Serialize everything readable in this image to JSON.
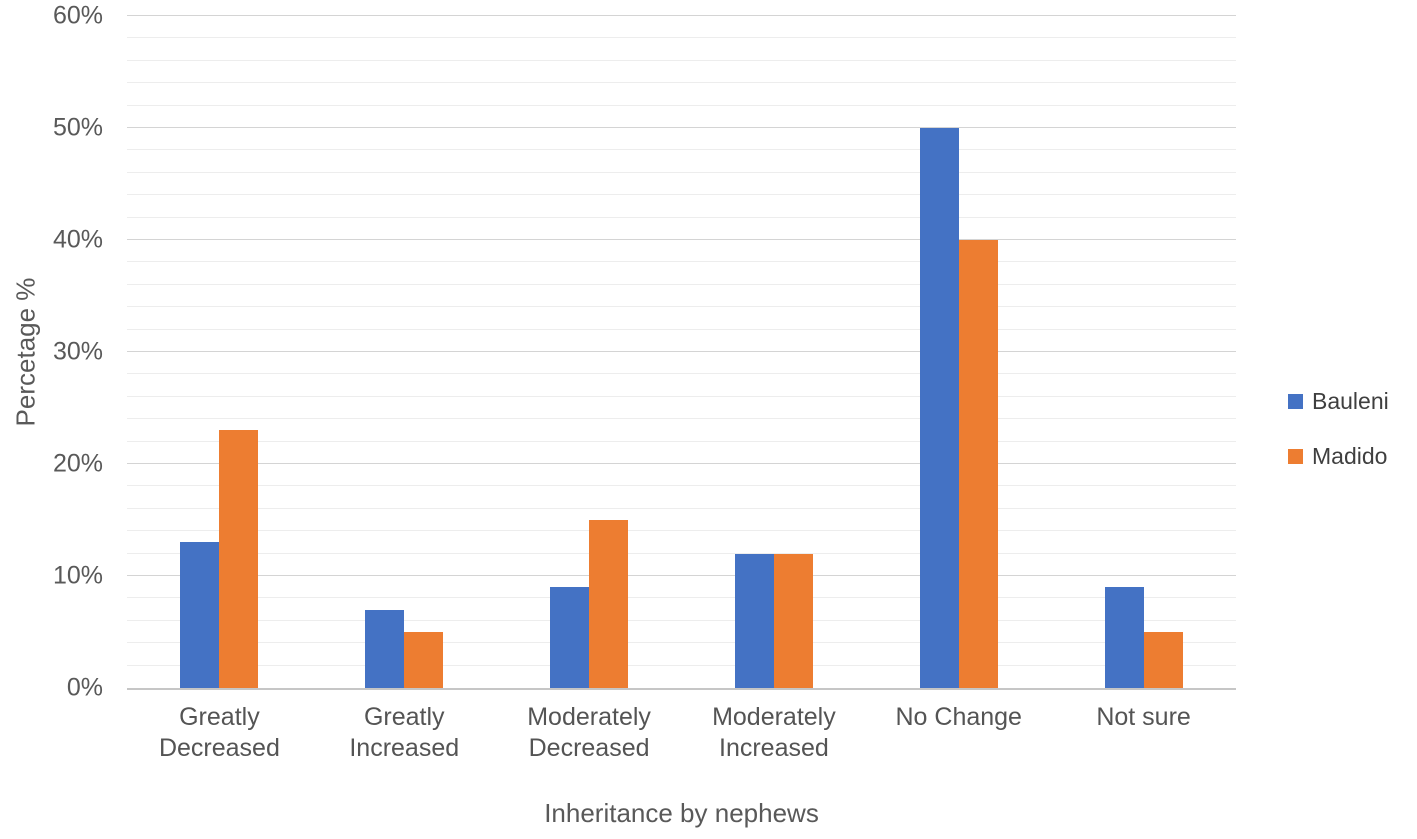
{
  "chart_data": {
    "type": "bar",
    "title": "",
    "xlabel": "Inheritance by nephews",
    "ylabel": "Percetage %",
    "categories": [
      "Greatly Decreased",
      "Greatly Increased",
      "Moderately Decreased",
      "Moderately Increased",
      "No Change",
      "Not sure"
    ],
    "series": [
      {
        "name": "Bauleni",
        "color": "#4472C4",
        "values": [
          13,
          7,
          9,
          12,
          50,
          9
        ]
      },
      {
        "name": "Madido",
        "color": "#ED7D31",
        "values": [
          23,
          5,
          15,
          12,
          40,
          5
        ]
      }
    ],
    "ylim": [
      0,
      60
    ],
    "y_major_step": 10,
    "y_minor_step": 2,
    "y_tick_labels": [
      "0%",
      "10%",
      "20%",
      "30%",
      "40%",
      "50%",
      "60%"
    ],
    "y_tick_suffix": "%",
    "grid": "horizontal major+minor",
    "legend_position": "right"
  }
}
